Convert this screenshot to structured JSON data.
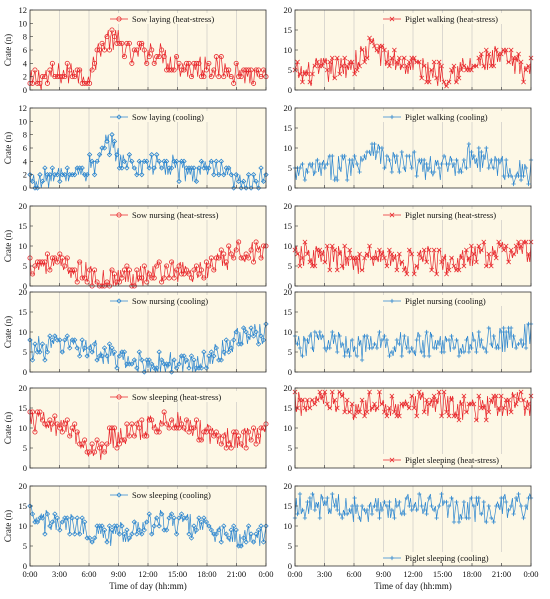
{
  "figure": {
    "xaxis_label": "Time of day (hh:mm)",
    "yaxis_label": "Crate (n)",
    "x_ticks": [
      "0:00",
      "3:00",
      "6:00",
      "9:00",
      "12:00",
      "15:00",
      "18:00",
      "21:00",
      "0:00"
    ],
    "panel_background": "#fdf8e6",
    "colors": {
      "heat_stress": "#e8262b",
      "cooling": "#2d86cf"
    },
    "markers": {
      "heat_stress_sow": "open-circle",
      "cooling_sow": "open-diamond",
      "heat_stress_piglet": "x-cross",
      "cooling_piglet": "plus"
    }
  },
  "chart_data": [
    {
      "type": "line",
      "title": "Sow laying (heat-stress)",
      "condition": "heat_stress",
      "column": "left",
      "legend_position": "top",
      "xlabel": "",
      "ylabel": "Crate (n)",
      "xlim": [
        0,
        24
      ],
      "ylim": [
        0,
        12
      ],
      "yticks": [
        0,
        2,
        4,
        6,
        8,
        10,
        12
      ],
      "series": [
        {
          "name": "Sow laying (heat-stress)",
          "x": [
            0,
            1.5,
            3,
            4.5,
            6,
            7,
            8,
            9,
            10.5,
            12,
            13.5,
            15,
            16.5,
            18,
            19.5,
            21,
            22.5,
            24
          ],
          "values": [
            1,
            2,
            2,
            3,
            2,
            6,
            8,
            7,
            5,
            6,
            5,
            4,
            3,
            4,
            3,
            3,
            2,
            1
          ]
        }
      ]
    },
    {
      "type": "line",
      "title": "Piglet walking (heat-stress)",
      "condition": "heat_stress",
      "column": "right",
      "legend_position": "top",
      "xlabel": "",
      "ylabel": "",
      "xlim": [
        0,
        24
      ],
      "ylim": [
        0,
        20
      ],
      "yticks": [
        0,
        5,
        10,
        15,
        20
      ],
      "series": [
        {
          "name": "Piglet walking (heat-stress)",
          "x": [
            0,
            1.5,
            3,
            4.5,
            6,
            7,
            8,
            9,
            10.5,
            12,
            13.5,
            15,
            16.5,
            18,
            19.5,
            21,
            22.5,
            24
          ],
          "values": [
            4,
            4,
            5,
            5,
            7,
            9,
            11,
            8,
            7,
            6,
            5,
            4,
            5,
            6,
            7,
            8,
            6,
            5
          ]
        }
      ]
    },
    {
      "type": "line",
      "title": "Sow laying (cooling)",
      "condition": "cooling",
      "column": "left",
      "legend_position": "top",
      "xlabel": "",
      "ylabel": "Crate (n)",
      "xlim": [
        0,
        24
      ],
      "ylim": [
        0,
        12
      ],
      "yticks": [
        0,
        2,
        4,
        6,
        8,
        10,
        12
      ],
      "series": [
        {
          "name": "Sow laying (cooling)",
          "x": [
            0,
            1.5,
            3,
            4.5,
            6,
            7,
            8,
            9,
            10.5,
            12,
            13.5,
            15,
            16.5,
            18,
            19.5,
            21,
            22.5,
            24
          ],
          "values": [
            1,
            1,
            2,
            2,
            3,
            4,
            7,
            5,
            3,
            4,
            3,
            3,
            2,
            3,
            2,
            1,
            1,
            1
          ]
        }
      ]
    },
    {
      "type": "line",
      "title": "Piglet walking (cooling)",
      "condition": "cooling",
      "column": "right",
      "legend_position": "top",
      "xlabel": "",
      "ylabel": "",
      "xlim": [
        0,
        24
      ],
      "ylim": [
        0,
        20
      ],
      "yticks": [
        0,
        5,
        10,
        15,
        20
      ],
      "series": [
        {
          "name": "Piglet walking (cooling)",
          "x": [
            0,
            1.5,
            3,
            4.5,
            6,
            7,
            8,
            9,
            10.5,
            12,
            13.5,
            15,
            16.5,
            18,
            19.5,
            21,
            22.5,
            24
          ],
          "values": [
            3,
            4,
            5,
            5,
            6,
            8,
            11,
            7,
            6,
            6,
            5,
            5,
            6,
            8,
            7,
            5,
            4,
            4
          ]
        }
      ]
    },
    {
      "type": "line",
      "title": "Sow nursing (heat-stress)",
      "condition": "heat_stress",
      "column": "left",
      "legend_position": "top",
      "xlabel": "",
      "ylabel": "Crate (n)",
      "xlim": [
        0,
        24
      ],
      "ylim": [
        0,
        20
      ],
      "yticks": [
        0,
        5,
        10,
        15,
        20
      ],
      "series": [
        {
          "name": "Sow nursing (heat-stress)",
          "x": [
            0,
            1.5,
            3,
            4.5,
            6,
            7,
            8,
            9,
            10.5,
            12,
            13.5,
            15,
            16.5,
            18,
            19.5,
            21,
            22.5,
            24
          ],
          "values": [
            5,
            6,
            5,
            4,
            3,
            1,
            1,
            2,
            3,
            3,
            4,
            4,
            3,
            4,
            6,
            8,
            9,
            8
          ]
        }
      ]
    },
    {
      "type": "line",
      "title": "Piglet nursing (heat-stress)",
      "condition": "heat_stress",
      "column": "right",
      "legend_position": "top",
      "xlabel": "",
      "ylabel": "",
      "xlim": [
        0,
        24
      ],
      "ylim": [
        0,
        20
      ],
      "yticks": [
        0,
        5,
        10,
        15,
        20
      ],
      "series": [
        {
          "name": "Piglet nursing (heat-stress)",
          "x": [
            0,
            1.5,
            3,
            4.5,
            6,
            7,
            8,
            9,
            10.5,
            12,
            13.5,
            15,
            16.5,
            18,
            19.5,
            21,
            22.5,
            24
          ],
          "values": [
            7,
            8,
            7,
            7,
            6,
            6,
            7,
            7,
            6,
            6,
            7,
            6,
            6,
            7,
            8,
            8,
            9,
            8
          ]
        }
      ]
    },
    {
      "type": "line",
      "title": "Sow nursing (cooling)",
      "condition": "cooling",
      "column": "left",
      "legend_position": "top",
      "xlabel": "",
      "ylabel": "Crate (n)",
      "xlim": [
        0,
        24
      ],
      "ylim": [
        0,
        20
      ],
      "yticks": [
        0,
        5,
        10,
        15,
        20
      ],
      "series": [
        {
          "name": "Sow nursing (cooling)",
          "x": [
            0,
            1.5,
            3,
            4.5,
            6,
            7,
            8,
            9,
            10.5,
            12,
            13.5,
            15,
            16.5,
            18,
            19.5,
            21,
            22.5,
            24
          ],
          "values": [
            6,
            6,
            7,
            7,
            6,
            5,
            4,
            3,
            2,
            2,
            2,
            2,
            2,
            3,
            6,
            8,
            9,
            10
          ]
        }
      ]
    },
    {
      "type": "line",
      "title": "Piglet nursing (cooling)",
      "condition": "cooling",
      "column": "right",
      "legend_position": "top",
      "xlabel": "",
      "ylabel": "",
      "xlim": [
        0,
        24
      ],
      "ylim": [
        0,
        20
      ],
      "yticks": [
        0,
        5,
        10,
        15,
        20
      ],
      "series": [
        {
          "name": "Piglet nursing (cooling)",
          "x": [
            0,
            1.5,
            3,
            4.5,
            6,
            7,
            8,
            9,
            10.5,
            12,
            13.5,
            15,
            16.5,
            18,
            19.5,
            21,
            22.5,
            24
          ],
          "values": [
            7,
            7,
            8,
            7,
            7,
            6,
            7,
            7,
            7,
            7,
            7,
            7,
            7,
            7,
            8,
            8,
            9,
            9
          ]
        }
      ]
    },
    {
      "type": "line",
      "title": "Sow sleeping (heat-stress)",
      "condition": "heat_stress",
      "column": "left",
      "legend_position": "top",
      "xlabel": "",
      "ylabel": "Crate (n)",
      "xlim": [
        0,
        24
      ],
      "ylim": [
        0,
        20
      ],
      "yticks": [
        0,
        5,
        10,
        15,
        20
      ],
      "series": [
        {
          "name": "Sow sleeping (heat-stress)",
          "x": [
            0,
            1.5,
            3,
            4.5,
            6,
            7,
            8,
            9,
            10.5,
            12,
            13.5,
            15,
            16.5,
            18,
            19.5,
            21,
            22.5,
            24
          ],
          "values": [
            12,
            11,
            10,
            9,
            5,
            4,
            7,
            8,
            9,
            10,
            12,
            12,
            10,
            9,
            8,
            7,
            8,
            9
          ]
        }
      ]
    },
    {
      "type": "line",
      "title": "Piglet sleeping (heat-stress)",
      "condition": "heat_stress",
      "column": "right",
      "legend_position": "bottom",
      "xlabel": "",
      "ylabel": "",
      "xlim": [
        0,
        24
      ],
      "ylim": [
        0,
        20
      ],
      "yticks": [
        0,
        5,
        10,
        15,
        20
      ],
      "series": [
        {
          "name": "Piglet sleeping (heat-stress)",
          "x": [
            0,
            1.5,
            3,
            4.5,
            6,
            7,
            8,
            9,
            10.5,
            12,
            13.5,
            15,
            16.5,
            18,
            19.5,
            21,
            22.5,
            24
          ],
          "values": [
            16,
            16,
            16,
            16,
            15,
            15,
            16,
            16,
            16,
            16,
            16,
            16,
            15,
            15,
            15,
            16,
            16,
            16
          ]
        }
      ]
    },
    {
      "type": "line",
      "title": "Sow sleeping (cooling)",
      "condition": "cooling",
      "column": "left",
      "legend_position": "top",
      "xlabel": "Time of day (hh:mm)",
      "ylabel": "Crate (n)",
      "xlim": [
        0,
        24
      ],
      "ylim": [
        0,
        20
      ],
      "yticks": [
        0,
        5,
        10,
        15,
        20
      ],
      "series": [
        {
          "name": "Sow sleeping (cooling)",
          "x": [
            0,
            1.5,
            3,
            4.5,
            6,
            7,
            8,
            9,
            10.5,
            12,
            13.5,
            15,
            16.5,
            18,
            19.5,
            21,
            22.5,
            24
          ],
          "values": [
            12,
            11,
            10,
            10,
            9,
            8,
            7,
            8,
            9,
            10,
            11,
            11,
            10,
            9,
            8,
            7,
            7,
            8
          ]
        }
      ]
    },
    {
      "type": "line",
      "title": "Piglet sleeping (cooling)",
      "condition": "cooling",
      "column": "right",
      "legend_position": "bottom",
      "xlabel": "Time of day (hh:mm)",
      "ylabel": "",
      "xlim": [
        0,
        24
      ],
      "ylim": [
        0,
        20
      ],
      "yticks": [
        0,
        5,
        10,
        15,
        20
      ],
      "series": [
        {
          "name": "Piglet sleeping (cooling)",
          "x": [
            0,
            1.5,
            3,
            4.5,
            6,
            7,
            8,
            9,
            10.5,
            12,
            13.5,
            15,
            16.5,
            18,
            19.5,
            21,
            22.5,
            24
          ],
          "values": [
            15,
            15,
            15,
            15,
            14,
            14,
            15,
            15,
            15,
            15,
            15,
            15,
            14,
            14,
            14,
            15,
            15,
            15
          ]
        }
      ]
    }
  ]
}
